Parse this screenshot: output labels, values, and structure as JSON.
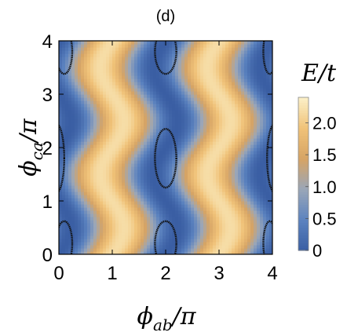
{
  "chart_data": {
    "type": "heatmap",
    "title": "(d)",
    "xlabel": {
      "main": "ϕ",
      "sub": "ab",
      "suffix": "/π"
    },
    "ylabel": {
      "main": "ϕ",
      "sub": "ca",
      "suffix": "/π"
    },
    "xlim": [
      0,
      4
    ],
    "ylim": [
      0,
      4
    ],
    "xticks": [
      "0",
      "1",
      "2",
      "3",
      "4"
    ],
    "yticks": [
      "0",
      "1",
      "2",
      "3",
      "4"
    ],
    "colorbar": {
      "title": "E/t",
      "range": [
        0,
        2.4
      ],
      "ticks": [
        "0",
        "0.5",
        "1.0",
        "1.5",
        "2.0"
      ],
      "colors": [
        "#3a5ea3",
        "#5b82bf",
        "#9aa6b8",
        "#d6a465",
        "#f0c278",
        "#fbf0c8"
      ]
    },
    "field": "E/t = 2.2·sin²(π·(x − 0.22·sin(π·y))/2) — zero valleys at x = 0, 2, 4; maxima ≈ 2.3 near x = 1, 3",
    "zero_contours": [
      {
        "cx": 0.1,
        "cy": 0.2,
        "rx": 0.15,
        "ry": 0.42
      },
      {
        "cx": -0.05,
        "cy": 1.8,
        "rx": 0.15,
        "ry": 0.65
      },
      {
        "cx": 0.1,
        "cy": 3.8,
        "rx": 0.15,
        "ry": 0.42
      },
      {
        "cx": 2.0,
        "cy": 0.2,
        "rx": 0.2,
        "ry": 0.42
      },
      {
        "cx": 2.0,
        "cy": 1.8,
        "rx": 0.2,
        "ry": 0.55
      },
      {
        "cx": 2.0,
        "cy": 3.8,
        "rx": 0.2,
        "ry": 0.42
      },
      {
        "cx": 3.95,
        "cy": 0.2,
        "rx": 0.12,
        "ry": 0.42
      },
      {
        "cx": 4.05,
        "cy": 1.8,
        "rx": 0.15,
        "ry": 0.65
      },
      {
        "cx": 3.95,
        "cy": 3.8,
        "rx": 0.12,
        "ry": 0.42
      }
    ]
  }
}
